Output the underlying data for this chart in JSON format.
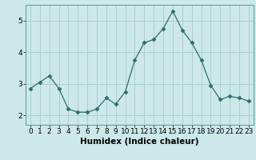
{
  "x": [
    0,
    1,
    2,
    3,
    4,
    5,
    6,
    7,
    8,
    9,
    10,
    11,
    12,
    13,
    14,
    15,
    16,
    17,
    18,
    19,
    20,
    21,
    22,
    23
  ],
  "y": [
    2.85,
    3.05,
    3.25,
    2.85,
    2.2,
    2.1,
    2.1,
    2.2,
    2.55,
    2.35,
    2.75,
    3.75,
    4.3,
    4.4,
    4.75,
    5.3,
    4.7,
    4.3,
    3.75,
    2.95,
    2.5,
    2.6,
    2.55,
    2.45
  ],
  "line_color": "#2d6e6e",
  "marker": "D",
  "marker_size": 2.5,
  "bg_color": "#cce8e8",
  "grid_color": "#aacccc",
  "xlabel": "Humidex (Indice chaleur)",
  "xlim": [
    -0.5,
    23.5
  ],
  "ylim": [
    1.7,
    5.5
  ],
  "yticks": [
    2,
    3,
    4,
    5
  ],
  "xticks": [
    0,
    1,
    2,
    3,
    4,
    5,
    6,
    7,
    8,
    9,
    10,
    11,
    12,
    13,
    14,
    15,
    16,
    17,
    18,
    19,
    20,
    21,
    22,
    23
  ],
  "xlabel_fontsize": 7.5,
  "tick_fontsize": 6.5
}
